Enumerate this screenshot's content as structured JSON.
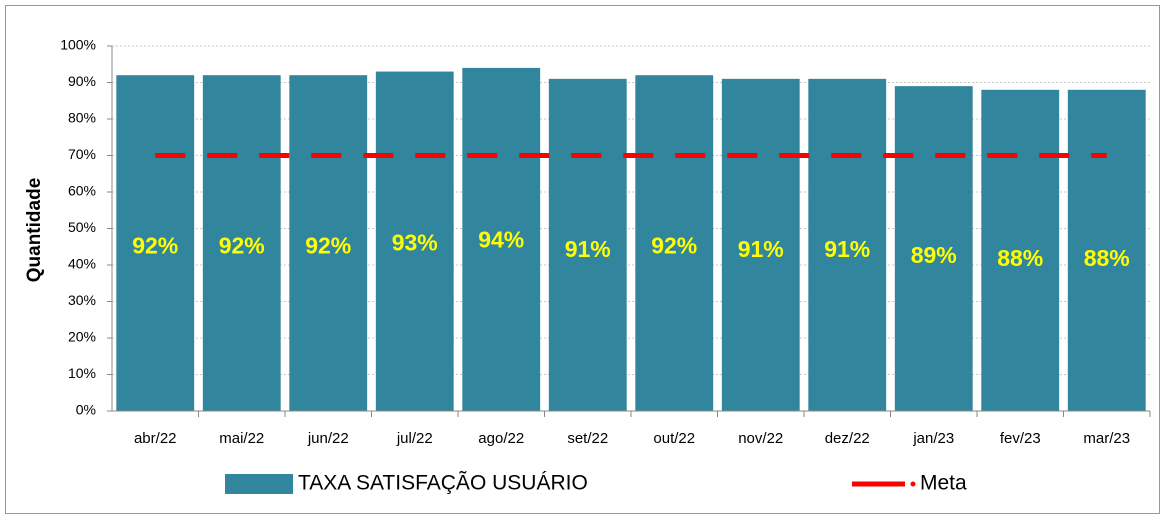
{
  "chart_data": {
    "type": "bar",
    "y_label": "Quantidade",
    "categories": [
      "abr/22",
      "mai/22",
      "jun/22",
      "jul/22",
      "ago/22",
      "set/22",
      "out/22",
      "nov/22",
      "dez/22",
      "jan/23",
      "fev/23",
      "mar/23"
    ],
    "series": [
      {
        "name": "TAXA SATISFAÇÃO USUÁRIO",
        "type": "bar",
        "color": "#31859c",
        "values": [
          92,
          92,
          92,
          93,
          94,
          91,
          92,
          91,
          91,
          89,
          88,
          88
        ],
        "value_labels": [
          "92%",
          "92%",
          "92%",
          "93%",
          "94%",
          "91%",
          "92%",
          "91%",
          "91%",
          "89%",
          "88%",
          "88%"
        ]
      },
      {
        "name": "Meta",
        "type": "line",
        "color": "#ff0000",
        "values": [
          70,
          70,
          70,
          70,
          70,
          70,
          70,
          70,
          70,
          70,
          70,
          70
        ]
      }
    ],
    "ylim": [
      0,
      100
    ],
    "yticks": [
      {
        "value": 0,
        "label": "0%"
      },
      {
        "value": 10,
        "label": "10%"
      },
      {
        "value": 20,
        "label": "20%"
      },
      {
        "value": 30,
        "label": "30%"
      },
      {
        "value": 40,
        "label": "40%"
      },
      {
        "value": 50,
        "label": "50%"
      },
      {
        "value": 60,
        "label": "60%"
      },
      {
        "value": 70,
        "label": "70%"
      },
      {
        "value": 80,
        "label": "80%"
      },
      {
        "value": 90,
        "label": "90%"
      },
      {
        "value": 100,
        "label": "100%"
      }
    ],
    "grid": true,
    "legend": "bottom"
  }
}
